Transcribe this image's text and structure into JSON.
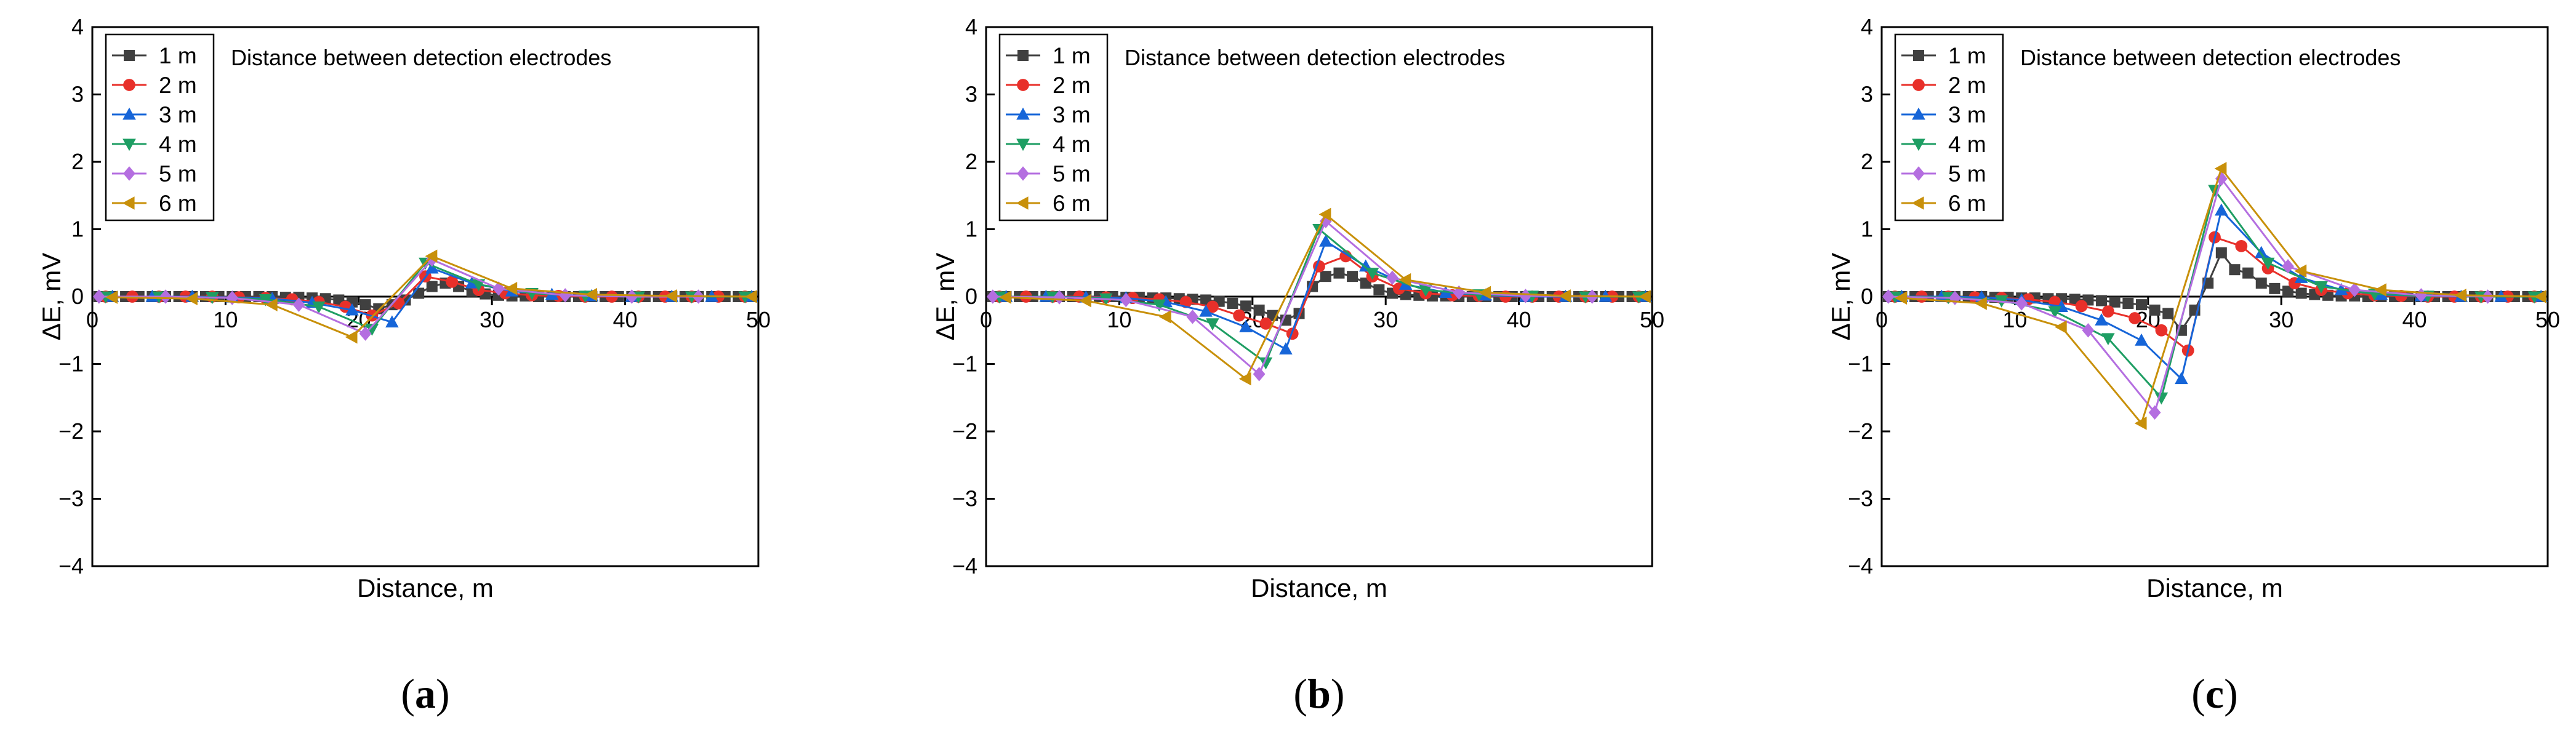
{
  "figure": {
    "shared": {
      "xlabel": "Distance, m",
      "ylabel": "ΔE, mV",
      "xlim": [
        0,
        50
      ],
      "ylim": [
        -4,
        4
      ],
      "xticks": [
        0,
        10,
        20,
        30,
        40,
        50
      ],
      "yticks": [
        -4,
        -3,
        -2,
        -1,
        0,
        1,
        2,
        3,
        4
      ],
      "annotation": "Distance between detection electrodes",
      "legend_placement": "top-left",
      "series_styles": [
        {
          "name": "1 m",
          "color": "#404040",
          "marker": "square"
        },
        {
          "name": "2 m",
          "color": "#e8302a",
          "marker": "circle"
        },
        {
          "name": "3 m",
          "color": "#1665d8",
          "marker": "triangle-up"
        },
        {
          "name": "4 m",
          "color": "#1e9e63",
          "marker": "triangle-down"
        },
        {
          "name": "5 m",
          "color": "#b46ee0",
          "marker": "diamond"
        },
        {
          "name": "6 m",
          "color": "#c8900a",
          "marker": "triangle-left"
        }
      ]
    }
  },
  "chart_data": [
    {
      "type": "line",
      "panel_label": "a",
      "title": "",
      "xlabel": "Distance, m",
      "ylabel": "ΔE, mV",
      "xlim": [
        0,
        50
      ],
      "ylim": [
        -4,
        4
      ],
      "grid": false,
      "annotation": "Distance between detection electrodes",
      "series": [
        {
          "name": "1 m",
          "color": "#404040",
          "marker": "square",
          "x": [
            0.5,
            1.5,
            2.5,
            3.5,
            4.5,
            5.5,
            6.5,
            7.5,
            8.5,
            9.5,
            10.5,
            11.5,
            12.5,
            13.5,
            14.5,
            15.5,
            16.5,
            17.5,
            18.5,
            19.5,
            20.5,
            21.5,
            22.5,
            23.5,
            24.5,
            25.5,
            26.5,
            27.5,
            28.5,
            29.5,
            30.5,
            31.5,
            32.5,
            33.5,
            34.5,
            35.5,
            36.5,
            37.5,
            38.5,
            39.5,
            40.5,
            41.5,
            42.5,
            43.5,
            44.5,
            45.5,
            46.5,
            47.5,
            48.5,
            49.5
          ],
          "y": [
            0,
            0,
            0,
            0,
            0,
            0,
            0,
            0,
            0,
            0,
            0,
            0,
            0,
            0,
            -0.01,
            -0.01,
            -0.02,
            -0.03,
            -0.05,
            -0.08,
            -0.12,
            -0.18,
            -0.12,
            -0.05,
            0.05,
            0.15,
            0.2,
            0.15,
            0.08,
            0.04,
            0.02,
            0.01,
            0.01,
            0,
            0,
            0,
            0,
            0,
            0,
            0,
            0,
            0,
            0,
            0,
            0,
            0,
            0,
            0,
            0,
            0
          ]
        },
        {
          "name": "2 m",
          "color": "#e8302a",
          "marker": "circle",
          "x": [
            1,
            3,
            5,
            7,
            9,
            11,
            13,
            15,
            17,
            19,
            21,
            23,
            25,
            27,
            29,
            31,
            33,
            35,
            37,
            39,
            41,
            43,
            45,
            47,
            49
          ],
          "y": [
            0,
            0,
            0,
            0,
            0,
            -0.01,
            -0.02,
            -0.04,
            -0.08,
            -0.15,
            -0.28,
            -0.1,
            0.3,
            0.22,
            0.1,
            0.05,
            0.02,
            0.01,
            0,
            0,
            0,
            0,
            0,
            0,
            0
          ]
        },
        {
          "name": "3 m",
          "color": "#1665d8",
          "marker": "triangle-up",
          "x": [
            1.5,
            4.5,
            7.5,
            10.5,
            13.5,
            16.5,
            19.5,
            22.5,
            25.5,
            28.5,
            31.5,
            34.5,
            37.5,
            40.5,
            43.5,
            46.5,
            49.5
          ],
          "y": [
            0,
            0,
            0,
            -0.01,
            -0.03,
            -0.09,
            -0.2,
            -0.38,
            0.42,
            0.2,
            0.08,
            0.03,
            0.01,
            0,
            0,
            0,
            0
          ]
        },
        {
          "name": "4 m",
          "color": "#1e9e63",
          "marker": "triangle-down",
          "x": [
            1,
            5,
            9,
            13,
            17,
            21,
            25,
            29,
            33,
            37,
            41,
            45,
            49
          ],
          "y": [
            0,
            0,
            -0.01,
            -0.04,
            -0.15,
            -0.48,
            0.5,
            0.18,
            0.05,
            0.01,
            0,
            0,
            0
          ]
        },
        {
          "name": "5 m",
          "color": "#b46ee0",
          "marker": "diamond",
          "x": [
            0.5,
            5.5,
            10.5,
            15.5,
            20.5,
            25.5,
            30.5,
            35.5,
            40.5,
            45.5
          ],
          "y": [
            0,
            0,
            -0.02,
            -0.12,
            -0.55,
            0.55,
            0.12,
            0.02,
            0,
            0
          ]
        },
        {
          "name": "6 m",
          "color": "#c8900a",
          "marker": "triangle-left",
          "x": [
            1.5,
            7.5,
            13.5,
            19.5,
            25.5,
            31.5,
            37.5,
            43.5,
            49.5
          ],
          "y": [
            -0.01,
            -0.03,
            -0.12,
            -0.6,
            0.6,
            0.12,
            0.03,
            0.01,
            0
          ]
        }
      ]
    },
    {
      "type": "line",
      "panel_label": "b",
      "title": "",
      "xlabel": "Distance, m",
      "ylabel": "ΔE, mV",
      "xlim": [
        0,
        50
      ],
      "ylim": [
        -4,
        4
      ],
      "grid": false,
      "annotation": "Distance between detection electrodes",
      "series": [
        {
          "name": "1 m",
          "color": "#404040",
          "marker": "square",
          "x": [
            0.5,
            1.5,
            2.5,
            3.5,
            4.5,
            5.5,
            6.5,
            7.5,
            8.5,
            9.5,
            10.5,
            11.5,
            12.5,
            13.5,
            14.5,
            15.5,
            16.5,
            17.5,
            18.5,
            19.5,
            20.5,
            21.5,
            22.5,
            23.5,
            24.5,
            25.5,
            26.5,
            27.5,
            28.5,
            29.5,
            30.5,
            31.5,
            32.5,
            33.5,
            34.5,
            35.5,
            36.5,
            37.5,
            38.5,
            39.5,
            40.5,
            41.5,
            42.5,
            43.5,
            44.5,
            45.5,
            46.5,
            47.5,
            48.5,
            49.5
          ],
          "y": [
            0,
            0,
            0,
            0,
            0,
            0,
            0,
            0,
            0,
            0,
            -0.01,
            -0.01,
            -0.02,
            -0.02,
            -0.03,
            -0.04,
            -0.05,
            -0.07,
            -0.1,
            -0.14,
            -0.2,
            -0.28,
            -0.35,
            -0.25,
            0.15,
            0.3,
            0.35,
            0.3,
            0.2,
            0.1,
            0.05,
            0.03,
            0.02,
            0.01,
            0.01,
            0,
            0,
            0,
            0,
            0,
            0,
            0,
            0,
            0,
            0,
            0,
            0,
            0,
            0,
            0
          ]
        },
        {
          "name": "2 m",
          "color": "#e8302a",
          "marker": "circle",
          "x": [
            1,
            3,
            5,
            7,
            9,
            11,
            13,
            15,
            17,
            19,
            21,
            23,
            25,
            27,
            29,
            31,
            33,
            35,
            37,
            39,
            41,
            43,
            45,
            47,
            49
          ],
          "y": [
            0,
            0,
            0,
            0,
            -0.01,
            -0.02,
            -0.04,
            -0.08,
            -0.15,
            -0.28,
            -0.4,
            -0.55,
            0.45,
            0.6,
            0.3,
            0.12,
            0.05,
            0.02,
            0.01,
            0,
            0,
            0,
            0,
            0,
            0
          ]
        },
        {
          "name": "3 m",
          "color": "#1665d8",
          "marker": "triangle-up",
          "x": [
            1.5,
            4.5,
            7.5,
            10.5,
            13.5,
            16.5,
            19.5,
            22.5,
            25.5,
            28.5,
            31.5,
            34.5,
            37.5,
            40.5,
            43.5,
            46.5,
            49.5
          ],
          "y": [
            0,
            0,
            -0.01,
            -0.02,
            -0.08,
            -0.22,
            -0.45,
            -0.78,
            0.82,
            0.45,
            0.18,
            0.06,
            0.02,
            0,
            0,
            0,
            0
          ]
        },
        {
          "name": "4 m",
          "color": "#1e9e63",
          "marker": "triangle-down",
          "x": [
            1,
            5,
            9,
            13,
            17,
            21,
            25,
            29,
            33,
            37,
            41,
            45,
            49
          ],
          "y": [
            0,
            0,
            -0.03,
            -0.12,
            -0.4,
            -0.98,
            1.0,
            0.35,
            0.1,
            0.03,
            0.01,
            0,
            0
          ]
        },
        {
          "name": "5 m",
          "color": "#b46ee0",
          "marker": "diamond",
          "x": [
            0.5,
            5.5,
            10.5,
            15.5,
            20.5,
            25.5,
            30.5,
            35.5,
            40.5,
            45.5
          ],
          "y": [
            0,
            -0.01,
            -0.05,
            -0.3,
            -1.15,
            1.12,
            0.28,
            0.06,
            0.01,
            0
          ]
        },
        {
          "name": "6 m",
          "color": "#c8900a",
          "marker": "triangle-left",
          "x": [
            1.5,
            7.5,
            13.5,
            19.5,
            25.5,
            31.5,
            37.5,
            43.5,
            49.5
          ],
          "y": [
            -0.01,
            -0.06,
            -0.3,
            -1.22,
            1.22,
            0.25,
            0.06,
            0.01,
            0
          ]
        }
      ]
    },
    {
      "type": "line",
      "panel_label": "c",
      "title": "",
      "xlabel": "Distance, m",
      "ylabel": "ΔE, mV",
      "xlim": [
        0,
        50
      ],
      "ylim": [
        -4,
        4
      ],
      "grid": false,
      "annotation": "Distance between detection electrodes",
      "series": [
        {
          "name": "1 m",
          "color": "#404040",
          "marker": "square",
          "x": [
            0.5,
            1.5,
            2.5,
            3.5,
            4.5,
            5.5,
            6.5,
            7.5,
            8.5,
            9.5,
            10.5,
            11.5,
            12.5,
            13.5,
            14.5,
            15.5,
            16.5,
            17.5,
            18.5,
            19.5,
            20.5,
            21.5,
            22.5,
            23.5,
            24.5,
            25.5,
            26.5,
            27.5,
            28.5,
            29.5,
            30.5,
            31.5,
            32.5,
            33.5,
            34.5,
            35.5,
            36.5,
            37.5,
            38.5,
            39.5,
            40.5,
            41.5,
            42.5,
            43.5,
            44.5,
            45.5,
            46.5,
            47.5,
            48.5,
            49.5
          ],
          "y": [
            0,
            0,
            0,
            0,
            0,
            0,
            0,
            0,
            -0.01,
            -0.01,
            -0.02,
            -0.02,
            -0.03,
            -0.03,
            -0.04,
            -0.05,
            -0.06,
            -0.08,
            -0.1,
            -0.12,
            -0.2,
            -0.25,
            -0.5,
            -0.2,
            0.2,
            0.65,
            0.4,
            0.35,
            0.2,
            0.12,
            0.08,
            0.05,
            0.03,
            0.02,
            0.01,
            0.01,
            0,
            0,
            0,
            0,
            0,
            0,
            0,
            0,
            0,
            0,
            0,
            0,
            0,
            0
          ]
        },
        {
          "name": "2 m",
          "color": "#e8302a",
          "marker": "circle",
          "x": [
            1,
            3,
            5,
            7,
            9,
            11,
            13,
            15,
            17,
            19,
            21,
            23,
            25,
            27,
            29,
            31,
            33,
            35,
            37,
            39,
            41,
            43,
            45,
            47,
            49
          ],
          "y": [
            0,
            0,
            0,
            -0.01,
            -0.02,
            -0.04,
            -0.08,
            -0.14,
            -0.22,
            -0.32,
            -0.5,
            -0.8,
            0.88,
            0.75,
            0.42,
            0.2,
            0.1,
            0.05,
            0.02,
            0.01,
            0,
            0,
            0,
            0,
            0
          ]
        },
        {
          "name": "3 m",
          "color": "#1665d8",
          "marker": "triangle-up",
          "x": [
            1.5,
            4.5,
            7.5,
            10.5,
            13.5,
            16.5,
            19.5,
            22.5,
            25.5,
            28.5,
            31.5,
            34.5,
            37.5,
            40.5,
            43.5,
            46.5,
            49.5
          ],
          "y": [
            0,
            0,
            -0.01,
            -0.05,
            -0.15,
            -0.35,
            -0.65,
            -1.22,
            1.28,
            0.65,
            0.28,
            0.1,
            0.03,
            0.01,
            0,
            0,
            0
          ]
        },
        {
          "name": "4 m",
          "color": "#1e9e63",
          "marker": "triangle-down",
          "x": [
            1,
            5,
            9,
            13,
            17,
            21,
            25,
            29,
            33,
            37,
            41,
            45,
            49
          ],
          "y": [
            0,
            -0.01,
            -0.06,
            -0.22,
            -0.62,
            -1.5,
            1.58,
            0.5,
            0.15,
            0.04,
            0.01,
            0,
            0
          ]
        },
        {
          "name": "5 m",
          "color": "#b46ee0",
          "marker": "diamond",
          "x": [
            0.5,
            5.5,
            10.5,
            15.5,
            20.5,
            25.5,
            30.5,
            35.5,
            40.5,
            45.5
          ],
          "y": [
            0,
            -0.02,
            -0.1,
            -0.5,
            -1.72,
            1.75,
            0.45,
            0.1,
            0.02,
            0
          ]
        },
        {
          "name": "6 m",
          "color": "#c8900a",
          "marker": "triangle-left",
          "x": [
            1.5,
            7.5,
            13.5,
            19.5,
            25.5,
            31.5,
            37.5,
            43.5,
            49.5
          ],
          "y": [
            -0.02,
            -0.1,
            -0.45,
            -1.88,
            1.9,
            0.38,
            0.1,
            0.02,
            0
          ]
        }
      ]
    }
  ]
}
